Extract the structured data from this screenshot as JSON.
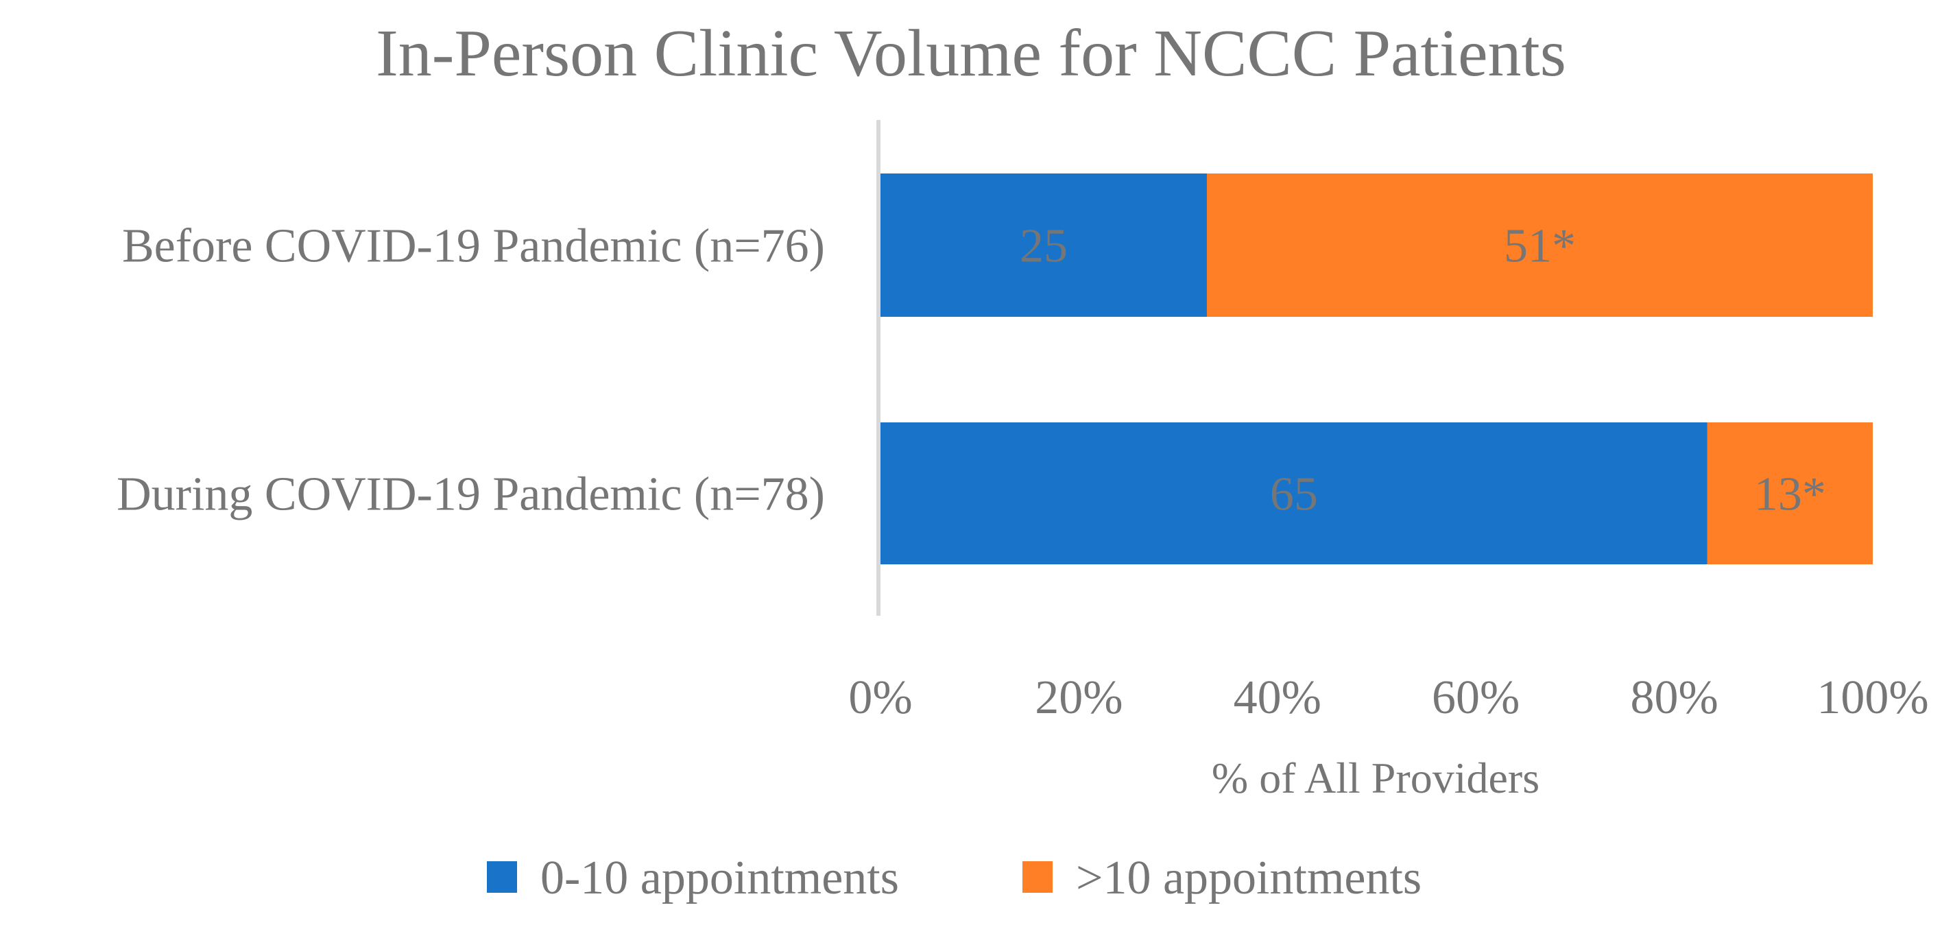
{
  "chart_data": {
    "type": "bar",
    "orientation": "horizontal",
    "stacked": "percent",
    "title": "In-Person Clinic Volume for NCCC Patients",
    "xlabel": "% of All Providers",
    "ylabel": "",
    "xlim": [
      0,
      100
    ],
    "x_ticks": [
      "0%",
      "20%",
      "40%",
      "60%",
      "80%",
      "100%"
    ],
    "categories": [
      "Before COVID-19 Pandemic (n=76)",
      "During COVID-19 Pandemic (n=78)"
    ],
    "series": [
      {
        "name": "0-10 appointments",
        "color": "#1873C9",
        "values": [
          25,
          65
        ],
        "labels": [
          "25",
          "65"
        ]
      },
      {
        "name": ">10 appointments",
        "color": "#FF7F27",
        "values": [
          51,
          13
        ],
        "labels": [
          "51*",
          "13*"
        ]
      }
    ],
    "grid": false,
    "legend": "bottom"
  }
}
